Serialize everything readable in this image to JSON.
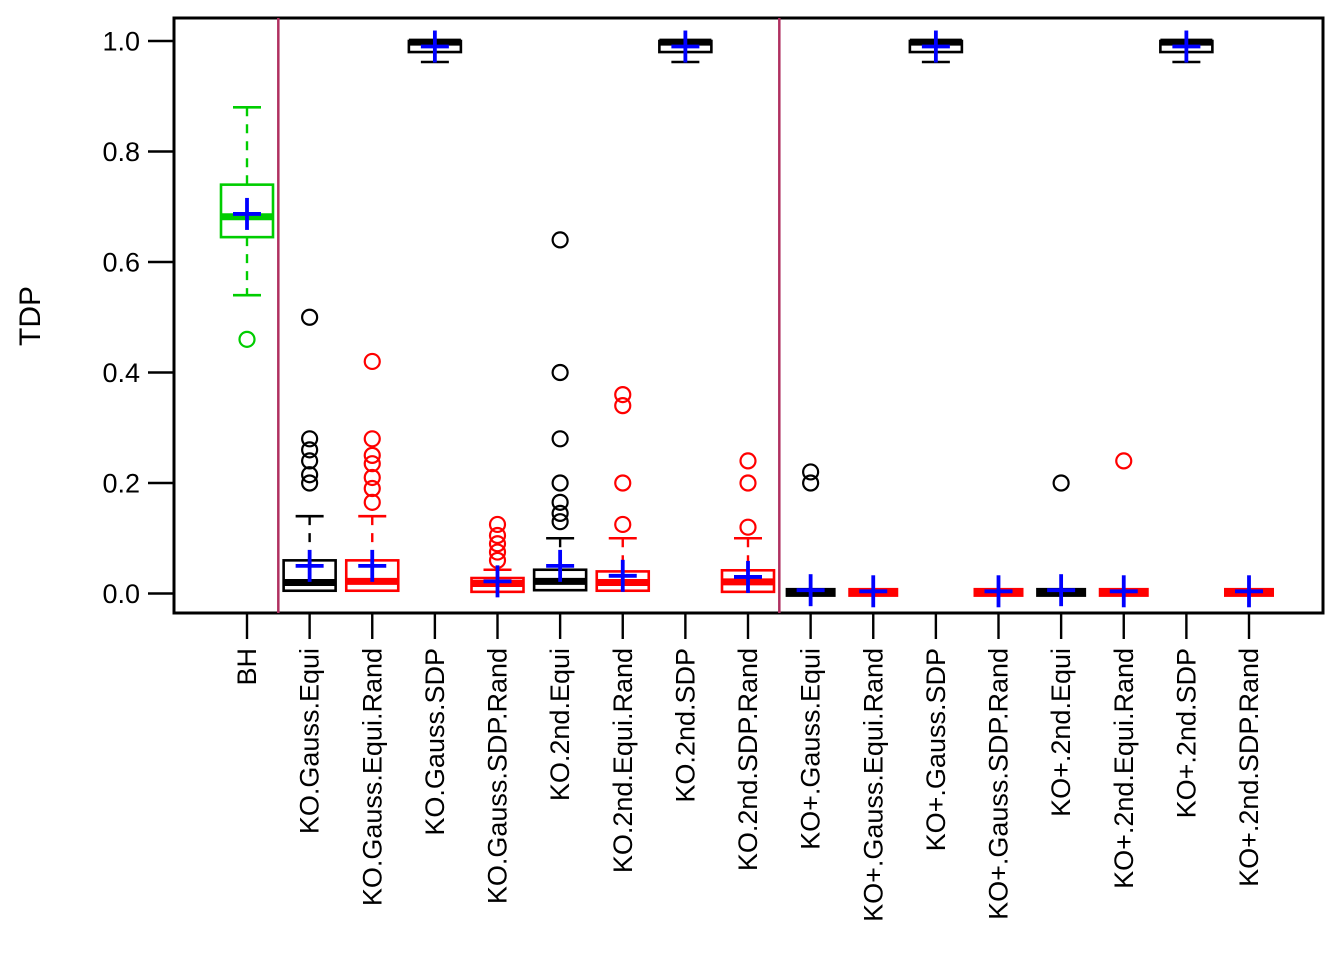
{
  "figure": {
    "background": "#ffffff",
    "description": "R-style boxplot of TDP by method"
  },
  "colors": {
    "black": "#000000",
    "red": "#ff0000",
    "green": "#00cd00",
    "mean_blue": "#0000ff",
    "separator_maroon": "#b03060"
  },
  "chart_data": {
    "type": "boxplot",
    "title": "",
    "xlabel": "",
    "ylabel": "TDP",
    "ylim": [
      0,
      1.04
    ],
    "grid": false,
    "legend": "none",
    "ytick_values": [
      0.0,
      0.2,
      0.4,
      0.6,
      0.8,
      1.0
    ],
    "ytick_labels": [
      "0.0",
      "0.2",
      "0.4",
      "0.6",
      "0.8",
      "1.0"
    ],
    "separators": {
      "positions": [
        0.5,
        8.5
      ],
      "color": "#b03060"
    },
    "mean_marker": {
      "symbol": "plus",
      "color": "#0000ff"
    },
    "whisker_style": "dashed",
    "categories": [
      "BH",
      "KO.Gauss.Equi",
      "KO.Gauss.Equi.Rand",
      "KO.Gauss.SDP",
      "KO.Gauss.SDP.Rand",
      "KO.2nd.Equi",
      "KO.2nd.Equi.Rand",
      "KO.2nd.SDP",
      "KO.2nd.SDP.Rand",
      "KO+.Gauss.Equi",
      "KO+.Gauss.Equi.Rand",
      "KO+.Gauss.SDP",
      "KO+.Gauss.SDP.Rand",
      "KO+.2nd.Equi",
      "KO+.2nd.Equi.Rand",
      "KO+.2nd.SDP",
      "KO+.2nd.SDP.Rand"
    ],
    "boxes": [
      {
        "label": "BH",
        "color": "#00cd00",
        "collapsed": false,
        "whisker_low": 0.54,
        "q1": 0.645,
        "median": 0.682,
        "q3": 0.74,
        "whisker_high": 0.88,
        "mean": 0.687,
        "outliers": [
          0.46
        ]
      },
      {
        "label": "KO.Gauss.Equi",
        "color": "#000000",
        "collapsed": false,
        "whisker_low": 0.005,
        "q1": 0.005,
        "median": 0.02,
        "q3": 0.06,
        "whisker_high": 0.14,
        "mean": 0.05,
        "outliers": [
          0.5,
          0.28,
          0.26,
          0.24,
          0.215,
          0.2
        ]
      },
      {
        "label": "KO.Gauss.Equi.Rand",
        "color": "#ff0000",
        "collapsed": false,
        "whisker_low": 0.005,
        "q1": 0.005,
        "median": 0.022,
        "q3": 0.06,
        "whisker_high": 0.14,
        "mean": 0.05,
        "outliers": [
          0.42,
          0.28,
          0.25,
          0.235,
          0.21,
          0.19,
          0.165
        ]
      },
      {
        "label": "KO.Gauss.SDP",
        "color": "#000000",
        "collapsed": false,
        "whisker_low": 0.962,
        "q1": 0.98,
        "median": 0.998,
        "q3": 1.0,
        "whisker_high": 1.0,
        "mean": 0.99,
        "outliers": []
      },
      {
        "label": "KO.Gauss.SDP.Rand",
        "color": "#ff0000",
        "collapsed": false,
        "whisker_low": 0.003,
        "q1": 0.003,
        "median": 0.018,
        "q3": 0.028,
        "whisker_high": 0.043,
        "mean": 0.022,
        "outliers": [
          0.125,
          0.105,
          0.09,
          0.075,
          0.06
        ]
      },
      {
        "label": "KO.2nd.Equi",
        "color": "#000000",
        "collapsed": false,
        "whisker_low": 0.006,
        "q1": 0.006,
        "median": 0.022,
        "q3": 0.043,
        "whisker_high": 0.1,
        "mean": 0.05,
        "outliers": [
          0.64,
          0.4,
          0.28,
          0.2,
          0.165,
          0.145,
          0.13
        ]
      },
      {
        "label": "KO.2nd.Equi.Rand",
        "color": "#ff0000",
        "collapsed": false,
        "whisker_low": 0.005,
        "q1": 0.005,
        "median": 0.02,
        "q3": 0.04,
        "whisker_high": 0.1,
        "mean": 0.032,
        "outliers": [
          0.36,
          0.34,
          0.2,
          0.125
        ]
      },
      {
        "label": "KO.2nd.SDP",
        "color": "#000000",
        "collapsed": false,
        "whisker_low": 0.962,
        "q1": 0.98,
        "median": 0.998,
        "q3": 1.0,
        "whisker_high": 1.0,
        "mean": 0.99,
        "outliers": []
      },
      {
        "label": "KO.2nd.SDP.Rand",
        "color": "#ff0000",
        "collapsed": false,
        "whisker_low": 0.003,
        "q1": 0.003,
        "median": 0.021,
        "q3": 0.042,
        "whisker_high": 0.1,
        "mean": 0.03,
        "outliers": [
          0.24,
          0.2,
          0.12
        ]
      },
      {
        "label": "KO+.Gauss.Equi",
        "color": "#000000",
        "collapsed": true,
        "whisker_low": 0.0,
        "q1": 0.0,
        "median": 0.002,
        "q3": 0.005,
        "whisker_high": 0.005,
        "mean": 0.006,
        "outliers": [
          0.22,
          0.2
        ]
      },
      {
        "label": "KO+.Gauss.Equi.Rand",
        "color": "#ff0000",
        "collapsed": true,
        "whisker_low": 0.0,
        "q1": 0.0,
        "median": 0.002,
        "q3": 0.005,
        "whisker_high": 0.005,
        "mean": 0.004,
        "outliers": []
      },
      {
        "label": "KO+.Gauss.SDP",
        "color": "#000000",
        "collapsed": false,
        "whisker_low": 0.962,
        "q1": 0.98,
        "median": 0.998,
        "q3": 1.0,
        "whisker_high": 1.0,
        "mean": 0.99,
        "outliers": []
      },
      {
        "label": "KO+.Gauss.SDP.Rand",
        "color": "#ff0000",
        "collapsed": true,
        "whisker_low": 0.0,
        "q1": 0.0,
        "median": 0.002,
        "q3": 0.005,
        "whisker_high": 0.005,
        "mean": 0.004,
        "outliers": []
      },
      {
        "label": "KO+.2nd.Equi",
        "color": "#000000",
        "collapsed": true,
        "whisker_low": 0.0,
        "q1": 0.0,
        "median": 0.002,
        "q3": 0.005,
        "whisker_high": 0.005,
        "mean": 0.006,
        "outliers": [
          0.2
        ]
      },
      {
        "label": "KO+.2nd.Equi.Rand",
        "color": "#ff0000",
        "collapsed": true,
        "whisker_low": 0.0,
        "q1": 0.0,
        "median": 0.002,
        "q3": 0.005,
        "whisker_high": 0.005,
        "mean": 0.004,
        "outliers": [
          0.24
        ]
      },
      {
        "label": "KO+.2nd.SDP",
        "color": "#000000",
        "collapsed": false,
        "whisker_low": 0.962,
        "q1": 0.98,
        "median": 0.998,
        "q3": 1.0,
        "whisker_high": 1.0,
        "mean": 0.99,
        "outliers": []
      },
      {
        "label": "KO+.2nd.SDP.Rand",
        "color": "#ff0000",
        "collapsed": true,
        "whisker_low": 0.0,
        "q1": 0.0,
        "median": 0.002,
        "q3": 0.005,
        "whisker_high": 0.005,
        "mean": 0.004,
        "outliers": []
      }
    ]
  }
}
